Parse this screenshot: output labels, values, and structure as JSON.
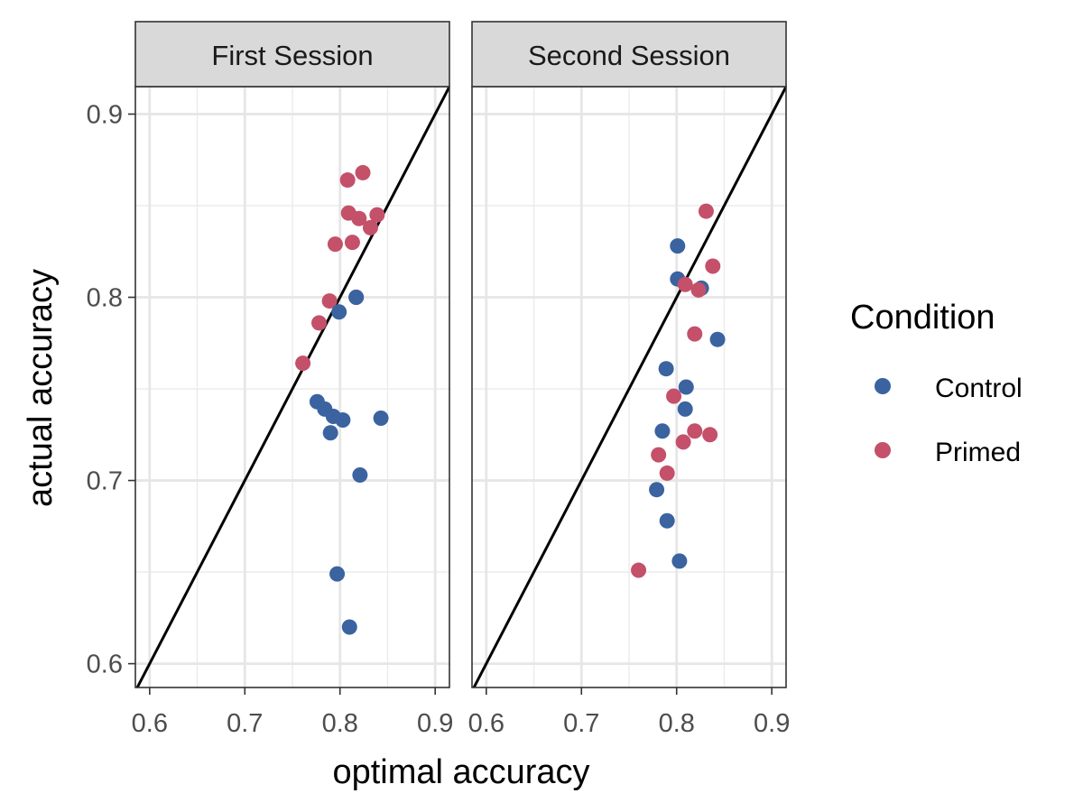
{
  "chart_data": {
    "type": "scatter",
    "xlabel": "optimal accuracy",
    "ylabel": "actual accuracy",
    "xlim": [
      0.585,
      0.915
    ],
    "ylim": [
      0.587,
      0.915
    ],
    "x_ticks": [
      "0.6",
      "0.7",
      "0.8",
      "0.9"
    ],
    "y_ticks": [
      "0.6",
      "0.7",
      "0.8",
      "0.9"
    ],
    "reference_line": "identity (y = x)",
    "grid": true,
    "legend": {
      "title": "Condition",
      "position": "right",
      "entries": [
        {
          "name": "Control",
          "color": "#3a63a0"
        },
        {
          "name": "Primed",
          "color": "#c4506a"
        }
      ]
    },
    "panels": [
      {
        "title": "First Session",
        "series": [
          {
            "name": "Primed",
            "color": "#c4506a",
            "points": [
              [
                0.761,
                0.764
              ],
              [
                0.778,
                0.786
              ],
              [
                0.789,
                0.798
              ],
              [
                0.795,
                0.829
              ],
              [
                0.808,
                0.864
              ],
              [
                0.809,
                0.846
              ],
              [
                0.813,
                0.83
              ],
              [
                0.817,
                0.8
              ],
              [
                0.82,
                0.843
              ],
              [
                0.824,
                0.868
              ],
              [
                0.832,
                0.838
              ],
              [
                0.839,
                0.845
              ]
            ]
          },
          {
            "name": "Control",
            "color": "#3a63a0",
            "points": [
              [
                0.776,
                0.743
              ],
              [
                0.784,
                0.739
              ],
              [
                0.79,
                0.726
              ],
              [
                0.793,
                0.735
              ],
              [
                0.797,
                0.649
              ],
              [
                0.799,
                0.792
              ],
              [
                0.803,
                0.733
              ],
              [
                0.81,
                0.62
              ],
              [
                0.817,
                0.8
              ],
              [
                0.821,
                0.703
              ],
              [
                0.843,
                0.734
              ]
            ]
          }
        ]
      },
      {
        "title": "Second Session",
        "series": [
          {
            "name": "Control",
            "color": "#3a63a0",
            "points": [
              [
                0.779,
                0.695
              ],
              [
                0.785,
                0.727
              ],
              [
                0.789,
                0.761
              ],
              [
                0.79,
                0.678
              ],
              [
                0.801,
                0.828
              ],
              [
                0.801,
                0.81
              ],
              [
                0.803,
                0.656
              ],
              [
                0.809,
                0.739
              ],
              [
                0.81,
                0.751
              ],
              [
                0.826,
                0.805
              ],
              [
                0.843,
                0.777
              ]
            ]
          },
          {
            "name": "Primed",
            "color": "#c4506a",
            "points": [
              [
                0.76,
                0.651
              ],
              [
                0.781,
                0.714
              ],
              [
                0.79,
                0.704
              ],
              [
                0.797,
                0.746
              ],
              [
                0.807,
                0.721
              ],
              [
                0.809,
                0.807
              ],
              [
                0.819,
                0.727
              ],
              [
                0.819,
                0.78
              ],
              [
                0.823,
                0.804
              ],
              [
                0.831,
                0.847
              ],
              [
                0.835,
                0.725
              ],
              [
                0.838,
                0.817
              ]
            ]
          }
        ]
      }
    ]
  }
}
